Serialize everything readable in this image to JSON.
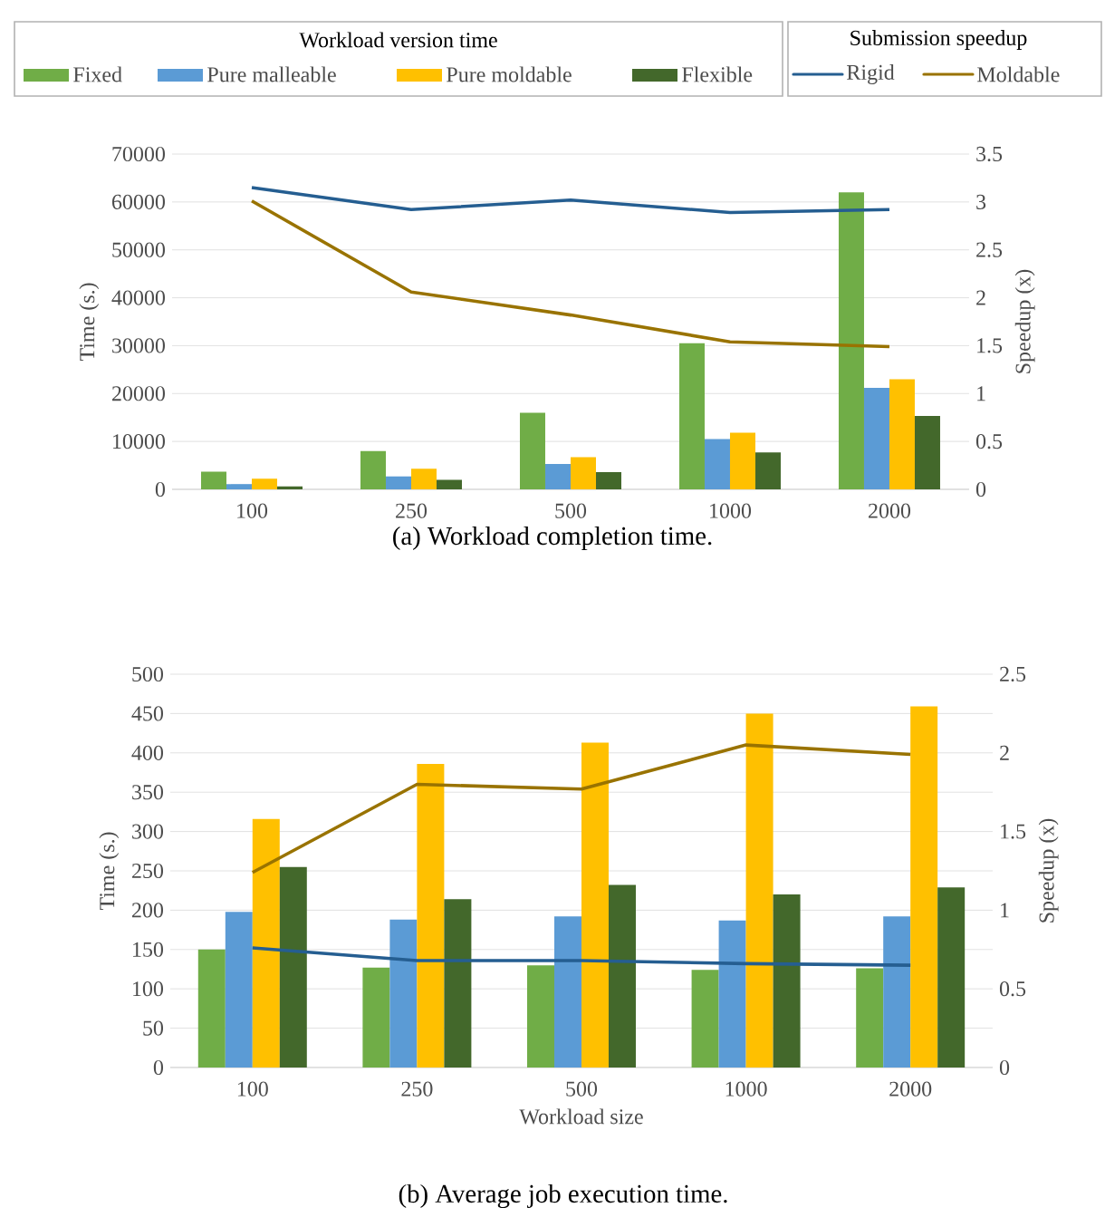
{
  "chart_data": [
    {
      "type": "bar",
      "title": "(a) Workload completion time.",
      "ylabel": "Time (s.)",
      "y2label": "Speedup (x)",
      "legend_title": "Workload version time",
      "annotations": [
        "Submission speedup"
      ],
      "legend": "top",
      "grid": "y",
      "categories": [
        "100",
        "250",
        "500",
        "1000",
        "2000"
      ],
      "ylim": [
        0,
        70000
      ],
      "yticks": [
        0,
        10000,
        20000,
        30000,
        40000,
        50000,
        60000,
        70000
      ],
      "y2lim": [
        0,
        3.5
      ],
      "y2ticks": [
        0,
        0.5,
        1,
        1.5,
        2,
        2.5,
        3,
        3.5
      ],
      "series": [
        {
          "name": "Fixed",
          "color": "#70ad47",
          "values": [
            3700,
            8000,
            16000,
            30500,
            62000
          ]
        },
        {
          "name": "Pure malleable",
          "color": "#5b9bd5",
          "values": [
            1100,
            2700,
            5300,
            10500,
            21200
          ]
        },
        {
          "name": "Pure moldable",
          "color": "#ffc000",
          "values": [
            2200,
            4300,
            6700,
            11800,
            23000
          ]
        },
        {
          "name": "Flexible",
          "color": "#43682b",
          "values": [
            600,
            2000,
            3600,
            7700,
            15300
          ]
        },
        {
          "name": "Rigid",
          "type": "line",
          "axis": "y2",
          "color": "#255e91",
          "values": [
            3.15,
            2.92,
            3.02,
            2.89,
            2.92
          ]
        },
        {
          "name": "Moldable",
          "type": "line",
          "axis": "y2",
          "color": "#997300",
          "values": [
            3.01,
            2.06,
            1.82,
            1.54,
            1.49
          ]
        }
      ]
    },
    {
      "type": "bar",
      "title": "(b) Average job execution time.",
      "xlabel": "Workload size",
      "ylabel": "Time (s.)",
      "y2label": "Speedup (x)",
      "grid": "y",
      "categories": [
        "100",
        "250",
        "500",
        "1000",
        "2000"
      ],
      "ylim": [
        0,
        500
      ],
      "yticks": [
        0,
        50,
        100,
        150,
        200,
        250,
        300,
        350,
        400,
        450,
        500
      ],
      "y2lim": [
        0,
        2.5
      ],
      "y2ticks": [
        0,
        0.5,
        1,
        1.5,
        2,
        2.5
      ],
      "series": [
        {
          "color": "#70ad47",
          "values": [
            150,
            127,
            130,
            124,
            126
          ]
        },
        {
          "color": "#5b9bd5",
          "values": [
            198,
            188,
            192,
            187,
            192
          ]
        },
        {
          "color": "#ffc000",
          "values": [
            316,
            386,
            413,
            450,
            459
          ]
        },
        {
          "color": "#43682b",
          "values": [
            255,
            214,
            232,
            220,
            229
          ]
        },
        {
          "type": "line",
          "axis": "y2",
          "color": "#255e91",
          "values": [
            0.76,
            0.68,
            0.68,
            0.66,
            0.65
          ]
        },
        {
          "type": "line",
          "axis": "y2",
          "color": "#997300",
          "values": [
            1.24,
            1.8,
            1.77,
            2.05,
            1.99
          ]
        }
      ]
    }
  ]
}
